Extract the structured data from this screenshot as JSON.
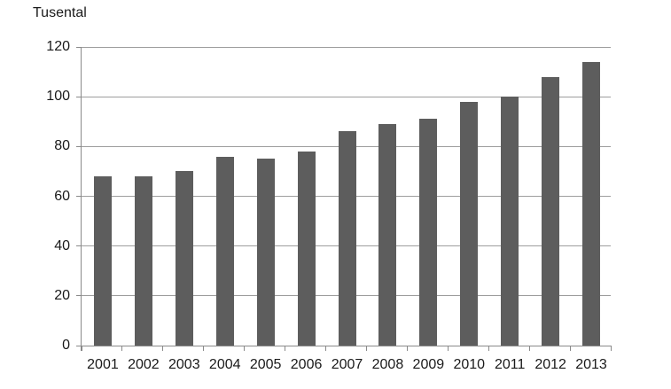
{
  "chart_data": {
    "type": "bar",
    "title": "Tusental",
    "categories": [
      "2001",
      "2002",
      "2003",
      "2004",
      "2005",
      "2006",
      "2007",
      "2008",
      "2009",
      "2010",
      "2011",
      "2012",
      "2013"
    ],
    "values": [
      68,
      68,
      70,
      76,
      75,
      78,
      86,
      89,
      91,
      98,
      100,
      108,
      114
    ],
    "xlabel": "",
    "ylabel": "Tusental",
    "ylim": [
      0,
      120
    ],
    "ytick_step": 20,
    "yticks": [
      0,
      20,
      40,
      60,
      80,
      100,
      120
    ],
    "grid": true,
    "legend": false,
    "colors": {
      "bar": "#5d5d5d",
      "grid": "#9d9d9d",
      "axis": "#8a8a8a",
      "text": "#1a1a1a",
      "background": "#ffffff"
    }
  }
}
